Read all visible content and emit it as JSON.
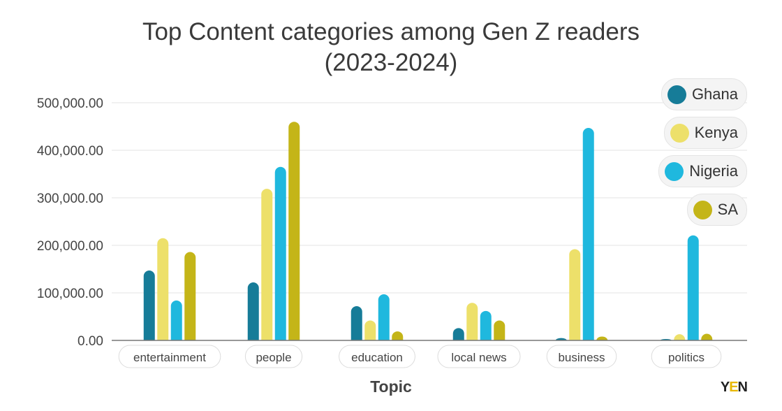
{
  "chart_data": {
    "type": "bar",
    "title": "Top Content categories among Gen Z readers (2023-2024)",
    "title_lines": [
      "Top Content categories among Gen Z readers",
      "(2023-2024)"
    ],
    "xlabel": "Topic",
    "ylabel": "",
    "ylim": [
      0,
      500000
    ],
    "yticks": [
      0,
      100000,
      200000,
      300000,
      400000,
      500000
    ],
    "ytick_labels": [
      "0.00",
      "100,000.00",
      "200,000.00",
      "300,000.00",
      "400,000.00",
      "500,000.00"
    ],
    "grid": true,
    "legend_position": "top-right",
    "categories": [
      "entertainment",
      "people",
      "education",
      "local news",
      "business",
      "politics"
    ],
    "series": [
      {
        "name": "Ghana",
        "color": "#167c98",
        "values": [
          147000,
          122000,
          72000,
          26000,
          5000,
          3000
        ]
      },
      {
        "name": "Kenya",
        "color": "#ede06a",
        "values": [
          215000,
          319000,
          42000,
          79000,
          192000,
          13000
        ]
      },
      {
        "name": "Nigeria",
        "color": "#1fb8de",
        "values": [
          84000,
          365000,
          97000,
          62000,
          447000,
          221000
        ]
      },
      {
        "name": "SA",
        "color": "#c4b518",
        "values": [
          186000,
          460000,
          19000,
          42000,
          8000,
          14000
        ]
      }
    ]
  },
  "logo": {
    "text": "YEN"
  }
}
